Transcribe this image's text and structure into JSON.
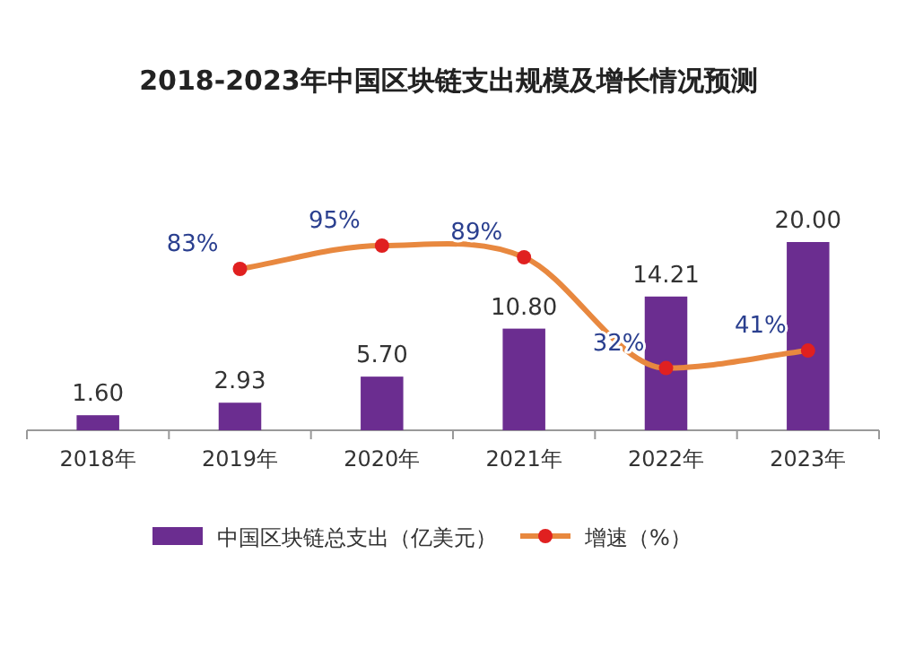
{
  "chart_data": {
    "type": "bar",
    "title": "2018-2023年中国区块链支出规模及增长情况预测",
    "categories": [
      "2018年",
      "2019年",
      "2020年",
      "2021年",
      "2022年",
      "2023年"
    ],
    "series": [
      {
        "name": "中国区块链总支出（亿美元）",
        "color": "#6b2d90",
        "values": [
          1.6,
          2.93,
          5.7,
          10.8,
          14.21,
          20.0
        ],
        "value_labels": [
          "1.60",
          "2.93",
          "5.70",
          "10.80",
          "14.21",
          "20.00"
        ]
      },
      {
        "name": "增速（%）",
        "type": "line",
        "axis": "y2",
        "color": "#e8883f",
        "values": [
          null,
          83,
          95,
          89,
          32,
          41
        ],
        "value_labels": [
          null,
          "83%",
          "95%",
          "89%",
          "32%",
          "41%"
        ]
      }
    ],
    "marker": "circle",
    "legend": "bottom"
  }
}
